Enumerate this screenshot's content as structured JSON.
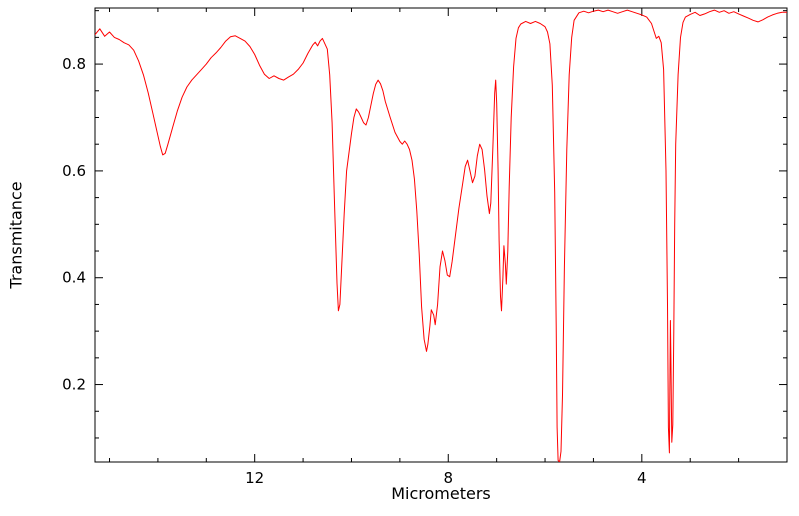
{
  "page": {
    "background_color": "#ffffff"
  },
  "chart_data": {
    "type": "line",
    "title": "",
    "xlabel": "Micrometers",
    "ylabel": "Transmitance",
    "grid": false,
    "legend": "none",
    "axis_color": "#000000",
    "x_axis": {
      "left_value": 15.3,
      "right_value": 1.0,
      "reversed": true,
      "minor_tick_step": 1,
      "major_ticks": [
        {
          "value": 12,
          "label": "12"
        },
        {
          "value": 8,
          "label": "8"
        },
        {
          "value": 4,
          "label": "4"
        }
      ]
    },
    "y_axis": {
      "bottom_value": 0.055,
      "top_value": 0.905,
      "minor_tick_step": 0.05,
      "major_ticks": [
        {
          "value": 0.2,
          "label": "0.2"
        },
        {
          "value": 0.4,
          "label": "0.4"
        },
        {
          "value": 0.6,
          "label": "0.6"
        },
        {
          "value": 0.8,
          "label": "0.8"
        }
      ]
    },
    "series": [
      {
        "color": "#ff0000",
        "points": [
          [
            15.3,
            0.855
          ],
          [
            15.2,
            0.866
          ],
          [
            15.1,
            0.852
          ],
          [
            15.0,
            0.86
          ],
          [
            14.9,
            0.85
          ],
          [
            14.8,
            0.846
          ],
          [
            14.7,
            0.84
          ],
          [
            14.6,
            0.836
          ],
          [
            14.5,
            0.826
          ],
          [
            14.4,
            0.806
          ],
          [
            14.3,
            0.78
          ],
          [
            14.2,
            0.746
          ],
          [
            14.1,
            0.706
          ],
          [
            14.0,
            0.666
          ],
          [
            13.95,
            0.646
          ],
          [
            13.9,
            0.63
          ],
          [
            13.85,
            0.633
          ],
          [
            13.8,
            0.648
          ],
          [
            13.7,
            0.68
          ],
          [
            13.6,
            0.712
          ],
          [
            13.5,
            0.738
          ],
          [
            13.4,
            0.757
          ],
          [
            13.3,
            0.77
          ],
          [
            13.2,
            0.78
          ],
          [
            13.1,
            0.79
          ],
          [
            13.0,
            0.8
          ],
          [
            12.9,
            0.812
          ],
          [
            12.8,
            0.821
          ],
          [
            12.7,
            0.831
          ],
          [
            12.6,
            0.843
          ],
          [
            12.5,
            0.851
          ],
          [
            12.4,
            0.853
          ],
          [
            12.3,
            0.848
          ],
          [
            12.2,
            0.843
          ],
          [
            12.1,
            0.833
          ],
          [
            12.0,
            0.818
          ],
          [
            11.9,
            0.798
          ],
          [
            11.8,
            0.781
          ],
          [
            11.7,
            0.773
          ],
          [
            11.6,
            0.778
          ],
          [
            11.5,
            0.773
          ],
          [
            11.4,
            0.77
          ],
          [
            11.3,
            0.776
          ],
          [
            11.2,
            0.781
          ],
          [
            11.1,
            0.79
          ],
          [
            11.0,
            0.802
          ],
          [
            10.9,
            0.82
          ],
          [
            10.8,
            0.836
          ],
          [
            10.75,
            0.841
          ],
          [
            10.7,
            0.834
          ],
          [
            10.65,
            0.843
          ],
          [
            10.6,
            0.848
          ],
          [
            10.55,
            0.838
          ],
          [
            10.5,
            0.828
          ],
          [
            10.45,
            0.78
          ],
          [
            10.4,
            0.69
          ],
          [
            10.35,
            0.54
          ],
          [
            10.3,
            0.39
          ],
          [
            10.27,
            0.338
          ],
          [
            10.24,
            0.35
          ],
          [
            10.2,
            0.425
          ],
          [
            10.15,
            0.52
          ],
          [
            10.1,
            0.6
          ],
          [
            10.0,
            0.67
          ],
          [
            9.95,
            0.7
          ],
          [
            9.9,
            0.716
          ],
          [
            9.85,
            0.71
          ],
          [
            9.8,
            0.7
          ],
          [
            9.75,
            0.69
          ],
          [
            9.7,
            0.686
          ],
          [
            9.65,
            0.7
          ],
          [
            9.6,
            0.722
          ],
          [
            9.55,
            0.745
          ],
          [
            9.5,
            0.762
          ],
          [
            9.45,
            0.77
          ],
          [
            9.4,
            0.763
          ],
          [
            9.35,
            0.75
          ],
          [
            9.3,
            0.73
          ],
          [
            9.2,
            0.7
          ],
          [
            9.1,
            0.672
          ],
          [
            9.0,
            0.655
          ],
          [
            8.95,
            0.65
          ],
          [
            8.9,
            0.656
          ],
          [
            8.85,
            0.65
          ],
          [
            8.8,
            0.64
          ],
          [
            8.75,
            0.62
          ],
          [
            8.7,
            0.585
          ],
          [
            8.65,
            0.525
          ],
          [
            8.6,
            0.445
          ],
          [
            8.55,
            0.345
          ],
          [
            8.5,
            0.285
          ],
          [
            8.45,
            0.262
          ],
          [
            8.42,
            0.276
          ],
          [
            8.38,
            0.31
          ],
          [
            8.35,
            0.34
          ],
          [
            8.3,
            0.33
          ],
          [
            8.27,
            0.312
          ],
          [
            8.22,
            0.35
          ],
          [
            8.17,
            0.42
          ],
          [
            8.12,
            0.45
          ],
          [
            8.07,
            0.432
          ],
          [
            8.02,
            0.405
          ],
          [
            7.97,
            0.402
          ],
          [
            7.92,
            0.43
          ],
          [
            7.85,
            0.48
          ],
          [
            7.78,
            0.53
          ],
          [
            7.7,
            0.578
          ],
          [
            7.65,
            0.608
          ],
          [
            7.6,
            0.62
          ],
          [
            7.55,
            0.6
          ],
          [
            7.5,
            0.578
          ],
          [
            7.45,
            0.59
          ],
          [
            7.4,
            0.628
          ],
          [
            7.35,
            0.65
          ],
          [
            7.3,
            0.64
          ],
          [
            7.25,
            0.602
          ],
          [
            7.2,
            0.553
          ],
          [
            7.15,
            0.52
          ],
          [
            7.12,
            0.54
          ],
          [
            7.08,
            0.64
          ],
          [
            7.04,
            0.746
          ],
          [
            7.02,
            0.77
          ],
          [
            7.0,
            0.726
          ],
          [
            6.97,
            0.6
          ],
          [
            6.95,
            0.47
          ],
          [
            6.92,
            0.365
          ],
          [
            6.9,
            0.338
          ],
          [
            6.87,
            0.4
          ],
          [
            6.85,
            0.46
          ],
          [
            6.82,
            0.425
          ],
          [
            6.8,
            0.388
          ],
          [
            6.77,
            0.45
          ],
          [
            6.74,
            0.57
          ],
          [
            6.7,
            0.7
          ],
          [
            6.65,
            0.795
          ],
          [
            6.6,
            0.848
          ],
          [
            6.55,
            0.868
          ],
          [
            6.5,
            0.875
          ],
          [
            6.4,
            0.88
          ],
          [
            6.3,
            0.876
          ],
          [
            6.2,
            0.88
          ],
          [
            6.1,
            0.876
          ],
          [
            6.0,
            0.87
          ],
          [
            5.95,
            0.86
          ],
          [
            5.9,
            0.838
          ],
          [
            5.85,
            0.76
          ],
          [
            5.8,
            0.56
          ],
          [
            5.77,
            0.31
          ],
          [
            5.75,
            0.12
          ],
          [
            5.73,
            0.058
          ],
          [
            5.7,
            0.055
          ],
          [
            5.67,
            0.075
          ],
          [
            5.64,
            0.18
          ],
          [
            5.6,
            0.42
          ],
          [
            5.55,
            0.64
          ],
          [
            5.5,
            0.78
          ],
          [
            5.45,
            0.85
          ],
          [
            5.4,
            0.882
          ],
          [
            5.3,
            0.896
          ],
          [
            5.2,
            0.899
          ],
          [
            5.1,
            0.896
          ],
          [
            5.0,
            0.899
          ],
          [
            4.9,
            0.901
          ],
          [
            4.8,
            0.898
          ],
          [
            4.7,
            0.901
          ],
          [
            4.6,
            0.898
          ],
          [
            4.5,
            0.895
          ],
          [
            4.4,
            0.898
          ],
          [
            4.3,
            0.901
          ],
          [
            4.2,
            0.898
          ],
          [
            4.1,
            0.895
          ],
          [
            4.0,
            0.892
          ],
          [
            3.9,
            0.888
          ],
          [
            3.8,
            0.876
          ],
          [
            3.75,
            0.862
          ],
          [
            3.7,
            0.848
          ],
          [
            3.65,
            0.852
          ],
          [
            3.6,
            0.84
          ],
          [
            3.55,
            0.79
          ],
          [
            3.5,
            0.6
          ],
          [
            3.47,
            0.35
          ],
          [
            3.45,
            0.12
          ],
          [
            3.43,
            0.072
          ],
          [
            3.42,
            0.2
          ],
          [
            3.41,
            0.32
          ],
          [
            3.4,
            0.25
          ],
          [
            3.38,
            0.092
          ],
          [
            3.36,
            0.125
          ],
          [
            3.34,
            0.3
          ],
          [
            3.32,
            0.5
          ],
          [
            3.3,
            0.65
          ],
          [
            3.25,
            0.78
          ],
          [
            3.2,
            0.85
          ],
          [
            3.15,
            0.878
          ],
          [
            3.1,
            0.888
          ],
          [
            3.0,
            0.893
          ],
          [
            2.9,
            0.897
          ],
          [
            2.8,
            0.891
          ],
          [
            2.7,
            0.894
          ],
          [
            2.6,
            0.898
          ],
          [
            2.5,
            0.901
          ],
          [
            2.4,
            0.897
          ],
          [
            2.3,
            0.9
          ],
          [
            2.2,
            0.895
          ],
          [
            2.1,
            0.898
          ],
          [
            2.0,
            0.894
          ],
          [
            1.9,
            0.89
          ],
          [
            1.8,
            0.886
          ],
          [
            1.7,
            0.882
          ],
          [
            1.6,
            0.879
          ],
          [
            1.5,
            0.883
          ],
          [
            1.4,
            0.888
          ],
          [
            1.3,
            0.892
          ],
          [
            1.2,
            0.895
          ],
          [
            1.1,
            0.897
          ],
          [
            1.0,
            0.897
          ]
        ]
      }
    ]
  }
}
